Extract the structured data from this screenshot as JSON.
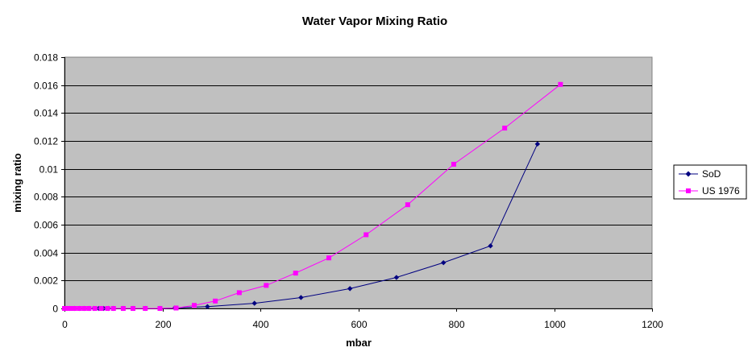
{
  "chart_data": {
    "type": "scatter",
    "title": "Water Vapor Mixing Ratio",
    "xlabel": "mbar",
    "ylabel": "mixing ratio",
    "xlim": [
      0,
      1200
    ],
    "ylim": [
      0,
      0.018
    ],
    "xticks": [
      0,
      200,
      400,
      600,
      800,
      1000,
      1200
    ],
    "xtick_labels": [
      "0",
      "200",
      "400",
      "600",
      "800",
      "1000",
      "1200"
    ],
    "yticks": [
      0,
      0.002,
      0.004,
      0.006,
      0.008,
      0.01,
      0.012,
      0.014,
      0.016,
      0.018
    ],
    "ytick_labels": [
      "0",
      "0.002",
      "0.004",
      "0.006",
      "0.008",
      "0.01",
      "0.012",
      "0.014",
      "0.016",
      "0.018"
    ],
    "grid": "horizontal",
    "legend_position": "right",
    "plot_background": "#c0c0c0",
    "series": [
      {
        "name": "SoD",
        "color": "#000080",
        "marker": "diamond",
        "x": [
          0,
          5,
          10,
          20,
          30,
          40,
          50,
          60,
          70,
          80,
          90,
          100,
          120,
          140,
          165,
          195,
          225,
          292,
          388,
          483,
          583,
          678,
          774,
          870,
          966
        ],
        "y": [
          0,
          0,
          0,
          0,
          0,
          0,
          0,
          0,
          0,
          0,
          0,
          0,
          0,
          0,
          0,
          0,
          3e-05,
          0.00013,
          0.00037,
          0.00078,
          0.00142,
          0.00222,
          0.00328,
          0.00448,
          0.01178
        ]
      },
      {
        "name": "US 1976",
        "color": "#ff00ff",
        "marker": "square",
        "x": [
          0,
          5,
          12,
          20,
          30,
          40,
          50,
          62,
          75,
          88,
          100,
          120,
          140,
          165,
          195,
          228,
          265,
          308,
          357,
          412,
          472,
          540,
          616,
          701,
          795,
          899,
          1013
        ],
        "y": [
          0,
          0,
          0,
          0,
          0,
          0,
          0,
          0,
          0,
          0,
          0,
          0,
          0,
          0,
          0,
          3e-05,
          0.00022,
          0.00053,
          0.00113,
          0.00165,
          0.00253,
          0.00362,
          0.00528,
          0.00743,
          0.01033,
          0.01292,
          0.01605
        ]
      }
    ]
  }
}
